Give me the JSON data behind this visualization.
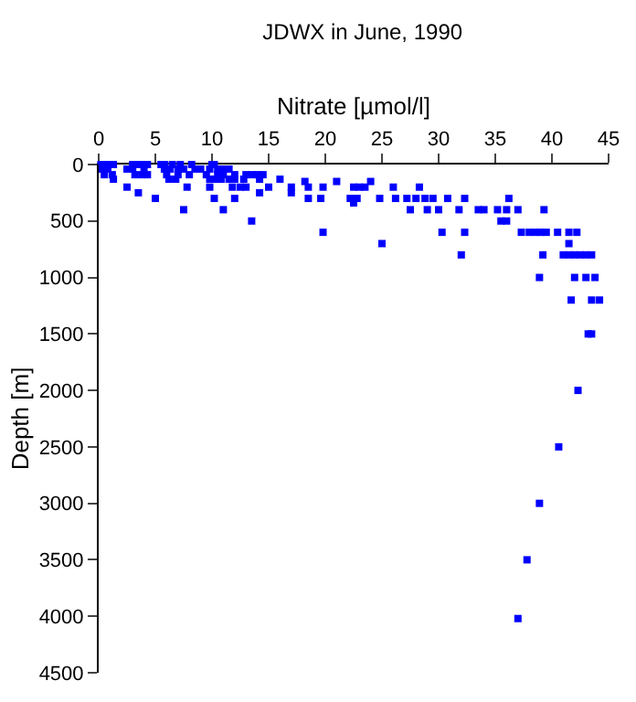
{
  "chart_data": {
    "type": "scatter",
    "title": "JDWX in June, 1990",
    "xlabel": "Nitrate [µmol/l]",
    "ylabel": "Depth [m]",
    "x": [
      0.2,
      0.6,
      1,
      1.3,
      3,
      3.5,
      4,
      4.3,
      5.5,
      5.8,
      6.5,
      7.2,
      8.2,
      10,
      10.2,
      0.3,
      0.8,
      2.5,
      3,
      4,
      5.8,
      6.3,
      7,
      7.5,
      8.5,
      9,
      9.8,
      10.5,
      11,
      11.5,
      0.5,
      1.2,
      3.2,
      3.8,
      4.3,
      6,
      7,
      8,
      9.5,
      10.5,
      11,
      12,
      13,
      13.5,
      14,
      14.5,
      1.3,
      6.2,
      6.8,
      9.8,
      10.3,
      10.8,
      11.5,
      12,
      12.8,
      14.2,
      16,
      18.2,
      21,
      24,
      2.5,
      7.8,
      9.8,
      11.8,
      12.5,
      13,
      15,
      17,
      18.5,
      19.8,
      22.5,
      23,
      23.5,
      26,
      28.3,
      3.5,
      14.2,
      17,
      5,
      10.2,
      12,
      18.5,
      19.6,
      22.2,
      22.8,
      24.8,
      26.2,
      27.2,
      28,
      28.8,
      29.5,
      30.8,
      32.3,
      36.2,
      22.5,
      7.5,
      11,
      27.5,
      29,
      30,
      31.8,
      33.5,
      34,
      35.2,
      36,
      37,
      39.3,
      13.5,
      35.5,
      36,
      19.8,
      30.3,
      32.3,
      37.3,
      38,
      38.5,
      39,
      39.5,
      40.5,
      41.5,
      42.2,
      25,
      41.5,
      32,
      39.2,
      41,
      41.5,
      42,
      42.5,
      43,
      43.5,
      38.9,
      42,
      43,
      43.8,
      41.7,
      43.5,
      44.2,
      43.2,
      43.5,
      42.3,
      40.6,
      38.9,
      37.8,
      37
    ],
    "values": [
      0,
      0,
      0,
      0,
      0,
      0,
      0,
      0,
      0,
      0,
      0,
      0,
      0,
      0,
      0,
      40,
      40,
      40,
      40,
      40,
      40,
      40,
      40,
      40,
      40,
      40,
      40,
      40,
      40,
      40,
      90,
      90,
      90,
      90,
      90,
      90,
      90,
      90,
      90,
      90,
      90,
      90,
      90,
      90,
      90,
      90,
      130,
      130,
      130,
      130,
      130,
      130,
      130,
      130,
      130,
      130,
      130,
      150,
      150,
      150,
      200,
      200,
      200,
      200,
      200,
      200,
      200,
      200,
      200,
      200,
      200,
      200,
      200,
      200,
      200,
      250,
      250,
      250,
      300,
      300,
      300,
      300,
      300,
      300,
      300,
      300,
      300,
      300,
      300,
      300,
      300,
      300,
      300,
      300,
      340,
      400,
      400,
      400,
      400,
      400,
      400,
      400,
      400,
      400,
      400,
      400,
      400,
      500,
      500,
      500,
      600,
      600,
      600,
      600,
      600,
      600,
      600,
      600,
      600,
      600,
      600,
      700,
      700,
      800,
      800,
      800,
      800,
      800,
      800,
      800,
      800,
      1000,
      1000,
      1000,
      1000,
      1200,
      1200,
      1200,
      1500,
      1500,
      2000,
      2500,
      3000,
      3500,
      4020
    ],
    "color": "#0000ff",
    "marker": "square",
    "xlim": [
      0,
      45
    ],
    "xticks": [
      0,
      5,
      10,
      15,
      20,
      25,
      30,
      35,
      40,
      45
    ],
    "ylim": [
      4500,
      0
    ],
    "yticks": [
      0,
      500,
      1000,
      1500,
      2000,
      2500,
      3000,
      3500,
      4000,
      4500
    ],
    "legend": false
  }
}
